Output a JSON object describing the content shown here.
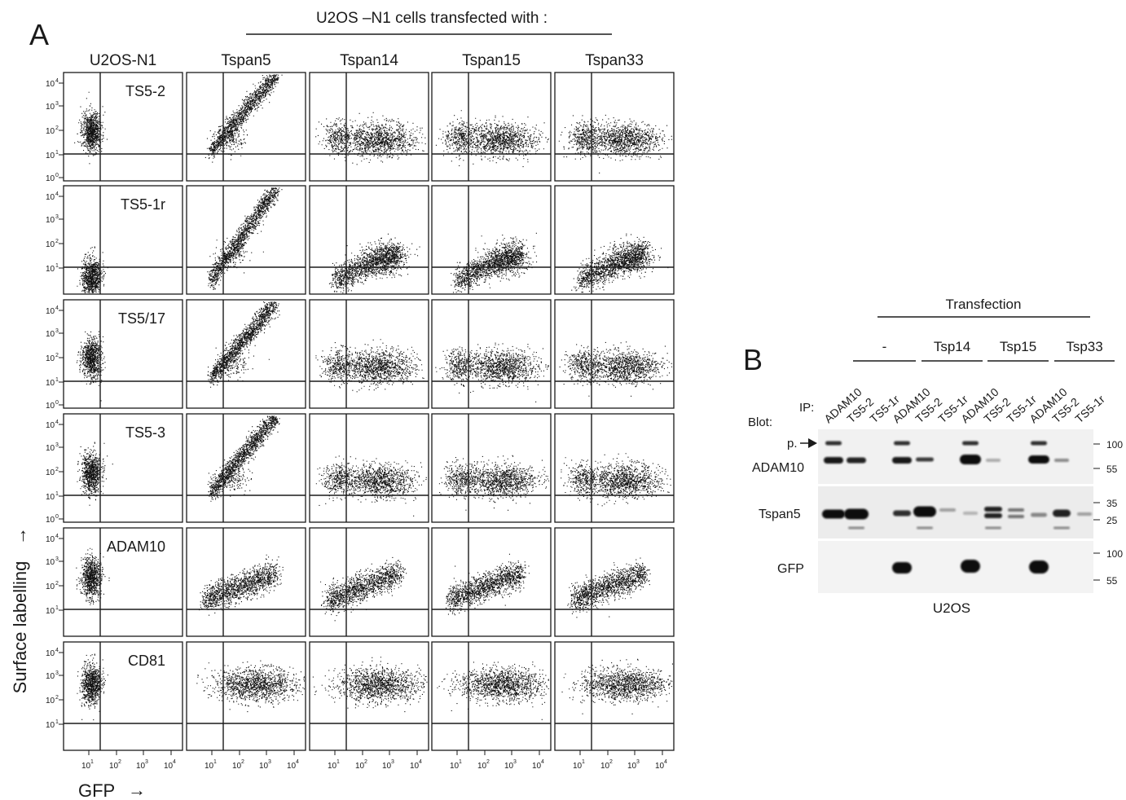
{
  "panel_a": {
    "letter": "A",
    "header": "U2OS –N1 cells transfected with :",
    "columns": [
      "U2OS-N1",
      "Tspan5",
      "Tspan14",
      "Tspan15",
      "Tspan33"
    ],
    "rows": [
      "TS5-2",
      "TS5-1r",
      "TS5/17",
      "TS5-3",
      "ADAM10",
      "CD81"
    ],
    "y_ticks": [
      "10",
      "10",
      "10",
      "10",
      "10"
    ],
    "y_tick_exp": [
      "0",
      "1",
      "2",
      "3",
      "4"
    ],
    "x_ticks": [
      "10",
      "10",
      "10",
      "10"
    ],
    "x_tick_exp": [
      "1",
      "2",
      "3",
      "4"
    ],
    "y_axis_label": "Surface labelling",
    "x_axis_label": "GFP",
    "arrow": "→"
  },
  "panel_b": {
    "letter": "B",
    "transfection_label": "Transfection",
    "groups": [
      "-",
      "Tsp14",
      "Tsp15",
      "Tsp33"
    ],
    "ip_label": "IP:",
    "blot_label": "Blot:",
    "lanes": [
      "ADAM10",
      "TS5-2",
      "TS5-1r",
      "ADAM10",
      "TS5-2",
      "TS5-1r",
      "ADAM10",
      "TS5-2",
      "TS5-1r",
      "ADAM10",
      "TS5-2",
      "TS5-1r"
    ],
    "p_label": "p.",
    "blots": [
      "ADAM10",
      "Tspan5",
      "GFP"
    ],
    "mw_adam10": [
      "100",
      "55"
    ],
    "mw_tspan5": [
      "35",
      "25"
    ],
    "mw_gfp": [
      "100",
      "55"
    ],
    "cell_line": "U2OS"
  }
}
